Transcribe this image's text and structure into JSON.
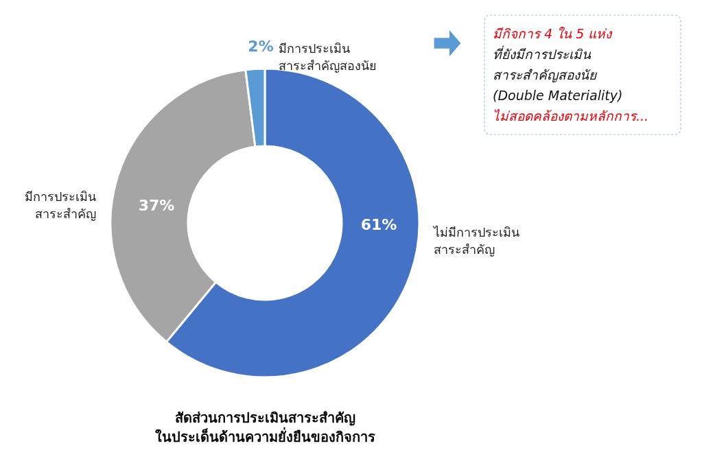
{
  "chart_data": {
    "type": "donut",
    "title": "สัดส่วนการประเมินสาระสำคัญ\nในประเด็นด้านความยั่งยืนของกิจการ",
    "categories": [
      "ไม่มีการประเมิน\nสาระสำคัญ",
      "มีการประเมิน\nสาระสำคัญ",
      "มีการประเมิน\nสาระสำคัญสองนัย"
    ],
    "values": [
      61,
      37,
      2
    ],
    "colors": [
      "#4472c4",
      "#a5a5a5",
      "#5b9bd5"
    ],
    "value_labels": [
      "61%",
      "37%",
      "2%"
    ],
    "annotations": [
      "มีกิจการ 4 ใน 5 แห่ง",
      "ที่ยังมีการประเมิน",
      "สาระสำคัญสองนัย",
      "(Double Materiality)",
      "ไม่สอดคล้องตามหลักการ..."
    ]
  }
}
